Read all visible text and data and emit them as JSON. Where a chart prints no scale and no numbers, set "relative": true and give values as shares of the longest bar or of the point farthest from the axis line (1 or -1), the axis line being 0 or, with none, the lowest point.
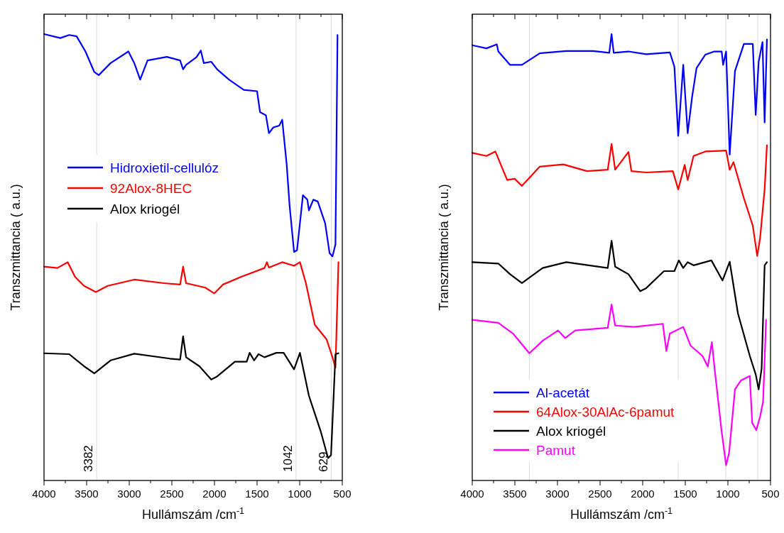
{
  "chart_data": [
    {
      "type": "line",
      "relative": true,
      "xlabel": "Hullámszám /cm$^{-1}$",
      "ylabel": "Transzmittancia  ( a.u.)",
      "xlim": [
        4000,
        500
      ],
      "xticks": [
        4000,
        {
          "value": 3750,
          "label": null
        },
        3500,
        {
          "value": 3250,
          "label": null
        },
        3000,
        {
          "value": 2750,
          "label": null
        },
        2500,
        {
          "value": 2250,
          "label": null
        },
        2000,
        {
          "value": 1750,
          "label": null
        },
        1500,
        {
          "value": 1250,
          "label": null
        },
        1000,
        {
          "value": 750,
          "label": null
        },
        500
      ],
      "legend": "left",
      "grid": false,
      "ref_lines": [
        {
          "axis": "x",
          "value": 3382,
          "label": "3382",
          "color": "#d9d9d9"
        },
        {
          "axis": "x",
          "value": 1042,
          "label": "1042",
          "color": "#d9d9d9"
        },
        {
          "axis": "x",
          "value": 629,
          "label": "629",
          "color": "#d9d9d9"
        }
      ],
      "series": [
        {
          "name": "Hidroxietil-cellulóz",
          "color": "#0000ff",
          "x": [
            4000,
            3809,
            3705,
            3618,
            3514,
            3410,
            3358,
            3219,
            3010,
            2941,
            2872,
            2785,
            2559,
            2403,
            2368,
            2333,
            2212,
            2160,
            2125,
            2038,
            1969,
            1830,
            1656,
            1500,
            1465,
            1396,
            1361,
            1309,
            1240,
            1205,
            1153,
            1118,
            1066,
            1031,
            962,
            910,
            892,
            840,
            788,
            701,
            649,
            615,
            580,
            556
          ],
          "values": [
            1.0,
            0.991,
            0.998,
            0.995,
            0.961,
            0.915,
            0.908,
            0.935,
            0.961,
            0.935,
            0.898,
            0.941,
            0.949,
            0.941,
            0.921,
            0.931,
            0.948,
            0.963,
            0.935,
            0.938,
            0.921,
            0.898,
            0.875,
            0.872,
            0.825,
            0.818,
            0.778,
            0.791,
            0.795,
            0.808,
            0.709,
            0.615,
            0.512,
            0.516,
            0.639,
            0.629,
            0.605,
            0.629,
            0.625,
            0.576,
            0.509,
            0.502,
            0.529,
            0.998
          ]
        },
        {
          "name": "92Alox-8HEC",
          "color": "#ff0000",
          "x": [
            4000,
            3844,
            3722,
            3635,
            3531,
            3392,
            3253,
            2941,
            2594,
            2403,
            2368,
            2333,
            2108,
            2003,
            1899,
            1691,
            1413,
            1385,
            1361,
            1205,
            1066,
            997,
            927,
            823,
            684,
            615,
            580,
            545
          ],
          "values": [
            0.479,
            0.476,
            0.489,
            0.456,
            0.436,
            0.422,
            0.436,
            0.45,
            0.442,
            0.439,
            0.479,
            0.442,
            0.432,
            0.419,
            0.439,
            0.456,
            0.476,
            0.489,
            0.477,
            0.489,
            0.481,
            0.489,
            0.442,
            0.349,
            0.316,
            0.276,
            0.253,
            0.489
          ]
        },
        {
          "name": "Alox kriogél",
          "color": "#000000",
          "x": [
            4000,
            3705,
            3531,
            3410,
            3219,
            2941,
            2524,
            2403,
            2368,
            2333,
            2177,
            2038,
            1969,
            1760,
            1622,
            1587,
            1535,
            1483,
            1413,
            1274,
            1188,
            1066,
            997,
            892,
            753,
            667,
            632,
            580,
            545
          ],
          "values": [
            0.285,
            0.283,
            0.256,
            0.24,
            0.269,
            0.284,
            0.273,
            0.271,
            0.323,
            0.276,
            0.256,
            0.226,
            0.233,
            0.266,
            0.266,
            0.286,
            0.269,
            0.283,
            0.276,
            0.286,
            0.286,
            0.249,
            0.286,
            0.19,
            0.11,
            0.05,
            0.057,
            0.283,
            0.285
          ]
        }
      ]
    },
    {
      "type": "line",
      "relative": true,
      "xlabel": "Hullámszám /cm$^{-1}$",
      "ylabel": "Transzmittancia  ( a.u.)",
      "xlim": [
        4000,
        500
      ],
      "xticks": [
        4000,
        {
          "value": 3750,
          "label": null
        },
        3500,
        {
          "value": 3250,
          "label": null
        },
        3000,
        {
          "value": 2750,
          "label": null
        },
        2500,
        {
          "value": 2250,
          "label": null
        },
        2000,
        {
          "value": 1750,
          "label": null
        },
        1500,
        {
          "value": 1250,
          "label": null
        },
        1000,
        {
          "value": 750,
          "label": null
        },
        500
      ],
      "legend": "bottom left",
      "grid": false,
      "ref_lines": [
        {
          "axis": "x",
          "value": 3330,
          "label": null,
          "color": "#d9d9d9"
        },
        {
          "axis": "x",
          "value": 1583,
          "label": null,
          "color": "#d9d9d9"
        },
        {
          "axis": "x",
          "value": 1025,
          "label": null,
          "color": "#d9d9d9"
        },
        {
          "axis": "x",
          "value": 650,
          "label": null,
          "color": "#d9d9d9"
        }
      ],
      "series": [
        {
          "name": "Al-acetát",
          "color": "#0000ff",
          "x": [
            4000,
            3833,
            3712,
            3694,
            3556,
            3417,
            3208,
            2896,
            2583,
            2392,
            2365,
            2340,
            2167,
            1958,
            1681,
            1628,
            1583,
            1524,
            1472,
            1420,
            1368,
            1264,
            1160,
            1073,
            1056,
            1021,
            979,
            917,
            812,
            708,
            674,
            639,
            594,
            569,
            542
          ],
          "values": [
            0.975,
            0.968,
            0.977,
            0.961,
            0.931,
            0.931,
            0.957,
            0.962,
            0.962,
            0.958,
            1.0,
            0.958,
            0.961,
            0.955,
            0.959,
            0.927,
            0.772,
            0.931,
            0.778,
            0.859,
            0.924,
            0.954,
            0.961,
            0.961,
            0.931,
            0.961,
            0.73,
            0.917,
            0.978,
            0.978,
            0.819,
            0.938,
            0.982,
            0.802,
            0.988
          ]
        },
        {
          "name": "64Alox-30AlAc-6pamut",
          "color": "#ff0000",
          "x": [
            4000,
            3833,
            3729,
            3590,
            3503,
            3417,
            3208,
            2931,
            2653,
            2410,
            2365,
            2323,
            2167,
            2132,
            1958,
            1646,
            1583,
            1507,
            1472,
            1403,
            1264,
            1021,
            979,
            934,
            812,
            708,
            656,
            622,
            569,
            542
          ],
          "values": [
            0.734,
            0.727,
            0.737,
            0.673,
            0.676,
            0.66,
            0.703,
            0.708,
            0.693,
            0.696,
            0.754,
            0.696,
            0.736,
            0.693,
            0.69,
            0.693,
            0.652,
            0.707,
            0.673,
            0.727,
            0.737,
            0.739,
            0.696,
            0.713,
            0.632,
            0.571,
            0.503,
            0.543,
            0.652,
            0.751
          ]
        },
        {
          "name": "Alox kriogél",
          "color": "#000000",
          "x": [
            4000,
            3694,
            3556,
            3417,
            3174,
            2896,
            2410,
            2365,
            2323,
            2167,
            2028,
            1958,
            1750,
            1628,
            1576,
            1524,
            1472,
            1403,
            1194,
            1063,
            979,
            882,
            743,
            674,
            639,
            604,
            569,
            542
          ],
          "values": [
            0.489,
            0.486,
            0.462,
            0.442,
            0.476,
            0.489,
            0.476,
            0.537,
            0.479,
            0.462,
            0.424,
            0.431,
            0.469,
            0.469,
            0.493,
            0.476,
            0.489,
            0.482,
            0.493,
            0.448,
            0.49,
            0.374,
            0.279,
            0.238,
            0.204,
            0.251,
            0.482,
            0.489
          ]
        },
        {
          "name": "Pamut",
          "color": "#ff00ff",
          "x": [
            4000,
            3694,
            3521,
            3330,
            3174,
            2993,
            2910,
            2792,
            2410,
            2365,
            2323,
            2097,
            1764,
            1722,
            1681,
            1524,
            1438,
            1299,
            1236,
            1188,
            1153,
            1073,
            1021,
            986,
            917,
            847,
            743,
            715,
            667,
            622,
            587,
            552
          ],
          "values": [
            0.36,
            0.353,
            0.329,
            0.285,
            0.313,
            0.336,
            0.319,
            0.336,
            0.342,
            0.394,
            0.347,
            0.344,
            0.351,
            0.29,
            0.329,
            0.344,
            0.302,
            0.279,
            0.255,
            0.31,
            0.245,
            0.109,
            0.034,
            0.062,
            0.204,
            0.224,
            0.234,
            0.129,
            0.113,
            0.143,
            0.177,
            0.36
          ]
        }
      ]
    }
  ]
}
